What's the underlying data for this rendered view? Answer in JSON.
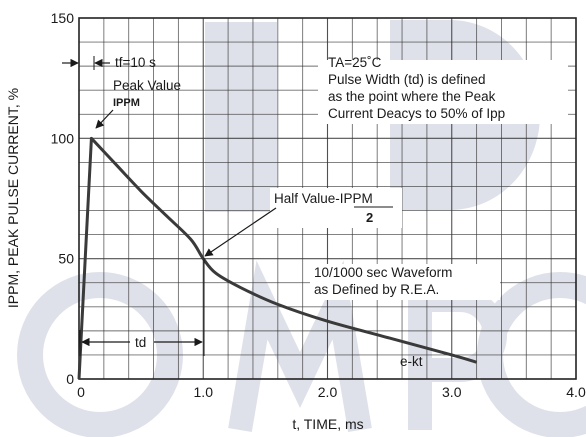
{
  "chart_data": {
    "type": "line",
    "xlabel": "t, TIME, ms",
    "ylabel": "IPPM, PEAK PULSE CURRENT, %",
    "xlim": [
      0,
      4.0
    ],
    "ylim": [
      0,
      150
    ],
    "x_ticks": [
      "0",
      "1.0",
      "2.0",
      "3.0",
      "4.0"
    ],
    "y_ticks": [
      "0",
      "50",
      "100",
      "150"
    ],
    "grid": true,
    "series": [
      {
        "x": [
          0,
          0.1,
          0.3,
          0.5,
          0.7,
          0.9,
          1.0,
          1.1,
          1.3,
          1.6,
          2.0,
          2.5,
          3.0,
          3.2
        ],
        "y": [
          0,
          100,
          89,
          78,
          68,
          58,
          50,
          44,
          38,
          31,
          24,
          17,
          10,
          7
        ]
      }
    ],
    "annotations": {
      "tf": "tf=10  s",
      "peak_value": "Peak Value",
      "ippm": "IPPM",
      "ta": "TA=25˚C",
      "pulse_width_1": "Pulse Width (td) is defined",
      "pulse_width_2": "as the point where the Peak",
      "pulse_width_3": "Current Deacys to 50% of Ipp",
      "half_value": "Half Value-IPPM",
      "half_value_denominator": "2",
      "waveform_1": "10/1000  sec Waveform",
      "waveform_2": "as Defined by R.E.A.",
      "td": "td",
      "ekt": "e-kt"
    },
    "colors": {
      "curve": "#3a3a3a",
      "grid": "#333333",
      "watermark": "#dfe1ea"
    }
  }
}
